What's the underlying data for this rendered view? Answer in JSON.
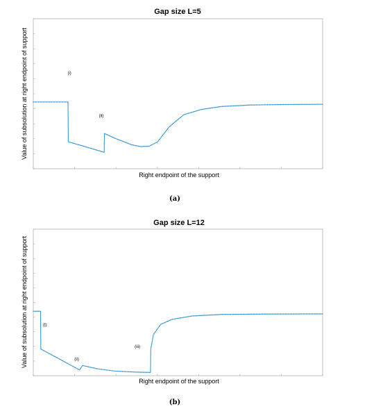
{
  "chart_data": [
    {
      "type": "line",
      "panel": "a",
      "title": "Gap size L=5",
      "xlabel": "Right endpoint of the support",
      "ylabel": "Value of subsolution at right endpoint of support",
      "caption": "(a)",
      "xlim": [
        0,
        100
      ],
      "ylim": [
        0,
        1
      ],
      "color": "#3d9ad1",
      "annotations": [
        {
          "text": "(i)",
          "x": 12.5,
          "y": 0.63
        },
        {
          "text": "(ii)",
          "x": 23.5,
          "y": 0.345
        }
      ],
      "x": [
        0,
        12,
        12.1,
        24.5,
        24.6,
        28,
        34,
        37,
        40,
        43,
        47,
        52,
        58,
        65,
        75,
        85,
        100
      ],
      "y": [
        0.445,
        0.445,
        0.18,
        0.11,
        0.235,
        0.205,
        0.16,
        0.148,
        0.15,
        0.18,
        0.28,
        0.36,
        0.395,
        0.415,
        0.425,
        0.428,
        0.43
      ]
    },
    {
      "type": "line",
      "panel": "b",
      "title": "Gap size L=12",
      "xlabel": "Right endpoint of the support",
      "ylabel": "Value of subsolution at right endpoint of support",
      "caption": "(b)",
      "xlim": [
        0,
        100
      ],
      "ylim": [
        0,
        1
      ],
      "color": "#3d9ad1",
      "annotations": [
        {
          "text": "(i)",
          "x": 4,
          "y": 0.34
        },
        {
          "text": "(ii)",
          "x": 15,
          "y": 0.105
        },
        {
          "text": "(iii)",
          "x": 36,
          "y": 0.19
        }
      ],
      "x": [
        0,
        2.5,
        2.6,
        8,
        15,
        16,
        17,
        22,
        28,
        35,
        40.5,
        40.6,
        41.5,
        44,
        48,
        55,
        65,
        80,
        100
      ],
      "y": [
        0.44,
        0.44,
        0.182,
        0.125,
        0.05,
        0.04,
        0.07,
        0.048,
        0.032,
        0.025,
        0.022,
        0.18,
        0.28,
        0.35,
        0.385,
        0.408,
        0.418,
        0.421,
        0.422
      ]
    }
  ]
}
